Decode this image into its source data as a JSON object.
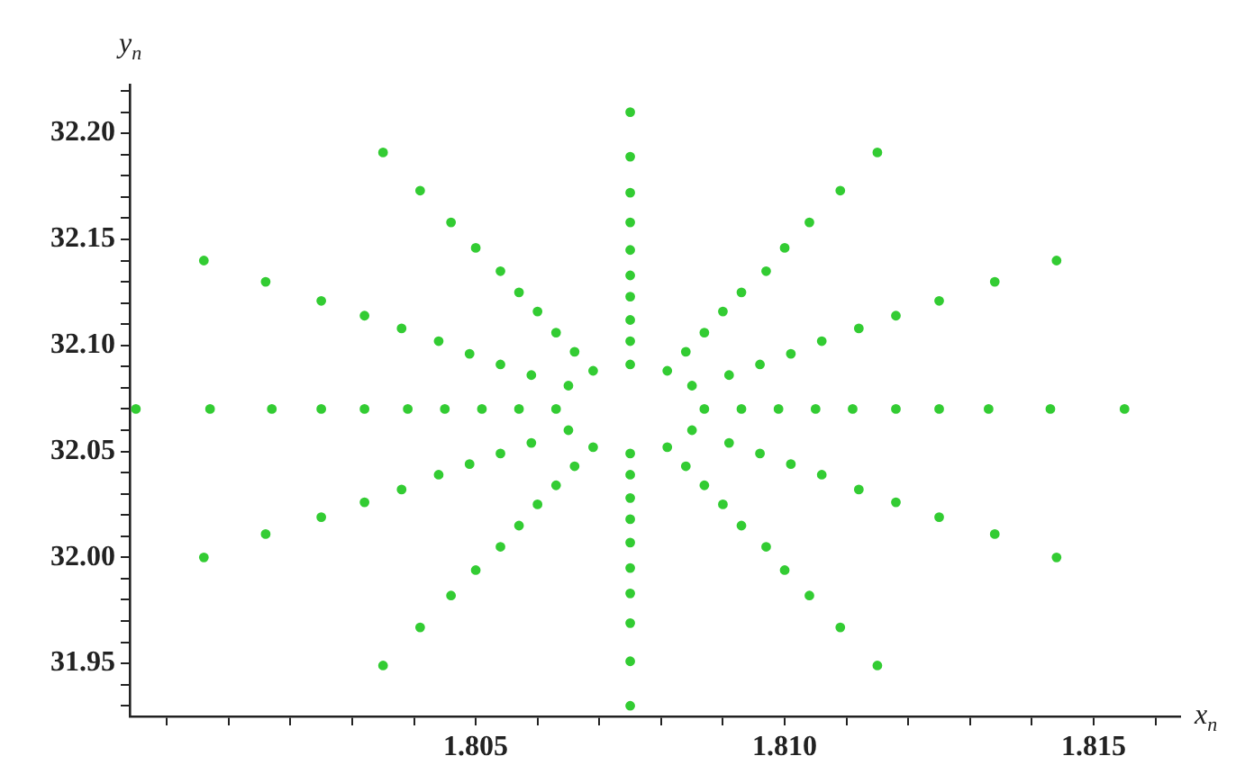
{
  "chart_data": {
    "type": "scatter",
    "xlabel": "x$_{n}$",
    "ylabel": "y$_{n}$",
    "xlim": [
      1.7994,
      1.8164
    ],
    "ylim": [
      31.925,
      32.223
    ],
    "xticks": [
      {
        "value": 1.8,
        "label": null
      },
      {
        "value": 1.801,
        "label": null
      },
      {
        "value": 1.802,
        "label": null
      },
      {
        "value": 1.803,
        "label": null
      },
      {
        "value": 1.804,
        "label": null
      },
      {
        "value": 1.805,
        "label": "1.805"
      },
      {
        "value": 1.806,
        "label": null
      },
      {
        "value": 1.807,
        "label": null
      },
      {
        "value": 1.808,
        "label": null
      },
      {
        "value": 1.809,
        "label": null
      },
      {
        "value": 1.81,
        "label": "1.810"
      },
      {
        "value": 1.811,
        "label": null
      },
      {
        "value": 1.812,
        "label": null
      },
      {
        "value": 1.813,
        "label": null
      },
      {
        "value": 1.814,
        "label": null
      },
      {
        "value": 1.815,
        "label": "1.815"
      },
      {
        "value": 1.816,
        "label": null
      }
    ],
    "yticks": [
      {
        "value": 31.93,
        "label": null
      },
      {
        "value": 31.94,
        "label": null
      },
      {
        "value": 31.95,
        "label": "31.95"
      },
      {
        "value": 31.96,
        "label": null
      },
      {
        "value": 31.97,
        "label": null
      },
      {
        "value": 31.98,
        "label": null
      },
      {
        "value": 31.99,
        "label": null
      },
      {
        "value": 32.0,
        "label": "32.00"
      },
      {
        "value": 32.01,
        "label": null
      },
      {
        "value": 32.02,
        "label": null
      },
      {
        "value": 32.03,
        "label": null
      },
      {
        "value": 32.04,
        "label": null
      },
      {
        "value": 32.05,
        "label": "32.05"
      },
      {
        "value": 32.06,
        "label": null
      },
      {
        "value": 32.07,
        "label": null
      },
      {
        "value": 32.08,
        "label": null
      },
      {
        "value": 32.09,
        "label": null
      },
      {
        "value": 32.1,
        "label": "32.10"
      },
      {
        "value": 32.11,
        "label": null
      },
      {
        "value": 32.12,
        "label": null
      },
      {
        "value": 32.13,
        "label": null
      },
      {
        "value": 32.14,
        "label": null
      },
      {
        "value": 32.15,
        "label": "32.15"
      },
      {
        "value": 32.16,
        "label": null
      },
      {
        "value": 32.17,
        "label": null
      },
      {
        "value": 32.18,
        "label": null
      },
      {
        "value": 32.19,
        "label": null
      },
      {
        "value": 32.2,
        "label": "32.20"
      },
      {
        "value": 32.21,
        "label": null
      },
      {
        "value": 32.22,
        "label": null
      }
    ],
    "grid": false,
    "legend": false,
    "marker": "circle",
    "series": [
      {
        "color": "#33cc33",
        "x": [
          1.8155,
          1.8144,
          1.8115,
          1.8075,
          1.8035,
          1.8006,
          1.7995,
          1.8006,
          1.8035,
          1.8075,
          1.8115,
          1.8144,
          1.8143,
          1.8134,
          1.8109,
          1.8075,
          1.8041,
          1.8016,
          1.8007,
          1.8016,
          1.8041,
          1.8075,
          1.8109,
          1.8134,
          1.8133,
          1.8125,
          1.8104,
          1.8075,
          1.8046,
          1.8025,
          1.8017,
          1.8025,
          1.8046,
          1.8075,
          1.8104,
          1.8125,
          1.8125,
          1.8118,
          1.81,
          1.8075,
          1.805,
          1.8032,
          1.8025,
          1.8032,
          1.805,
          1.8075,
          1.81,
          1.8118,
          1.8118,
          1.8112,
          1.8097,
          1.8075,
          1.8054,
          1.8038,
          1.8032,
          1.8038,
          1.8054,
          1.8075,
          1.8097,
          1.8112,
          1.8111,
          1.8106,
          1.8093,
          1.8075,
          1.8057,
          1.8044,
          1.8039,
          1.8044,
          1.8057,
          1.8075,
          1.8093,
          1.8106,
          1.8105,
          1.8101,
          1.809,
          1.8075,
          1.806,
          1.8049,
          1.8045,
          1.8049,
          1.806,
          1.8075,
          1.809,
          1.8101,
          1.8099,
          1.8096,
          1.8087,
          1.8075,
          1.8063,
          1.8054,
          1.8051,
          1.8054,
          1.8063,
          1.8075,
          1.8087,
          1.8096,
          1.8093,
          1.8091,
          1.8084,
          1.8075,
          1.8066,
          1.8059,
          1.8057,
          1.8059,
          1.8066,
          1.8075,
          1.8084,
          1.8091,
          1.8087,
          1.8085,
          1.8081,
          1.8075,
          1.8069,
          1.8065,
          1.8063,
          1.8065,
          1.8069,
          1.8075,
          1.8081,
          1.8085
        ],
        "values": [
          32.07,
          32.14,
          32.191,
          32.21,
          32.191,
          32.14,
          32.07,
          32.0,
          31.949,
          31.93,
          31.949,
          32.0,
          32.07,
          32.13,
          32.173,
          32.189,
          32.173,
          32.13,
          32.07,
          32.011,
          31.967,
          31.951,
          31.967,
          32.011,
          32.07,
          32.121,
          32.158,
          32.172,
          32.158,
          32.121,
          32.07,
          32.019,
          31.982,
          31.969,
          31.982,
          32.019,
          32.07,
          32.114,
          32.146,
          32.158,
          32.146,
          32.114,
          32.07,
          32.026,
          31.994,
          31.983,
          31.994,
          32.026,
          32.07,
          32.108,
          32.135,
          32.145,
          32.135,
          32.108,
          32.07,
          32.032,
          32.005,
          31.995,
          32.005,
          32.032,
          32.07,
          32.102,
          32.125,
          32.133,
          32.125,
          32.102,
          32.07,
          32.039,
          32.015,
          32.007,
          32.015,
          32.039,
          32.07,
          32.096,
          32.116,
          32.123,
          32.116,
          32.096,
          32.07,
          32.044,
          32.025,
          32.018,
          32.025,
          32.044,
          32.07,
          32.091,
          32.106,
          32.112,
          32.106,
          32.091,
          32.07,
          32.049,
          32.034,
          32.028,
          32.034,
          32.049,
          32.07,
          32.086,
          32.097,
          32.102,
          32.097,
          32.086,
          32.07,
          32.054,
          32.043,
          32.039,
          32.043,
          32.054,
          32.07,
          32.081,
          32.088,
          32.091,
          32.088,
          32.081,
          32.07,
          32.06,
          32.052,
          32.049,
          32.052,
          32.06
        ]
      }
    ]
  }
}
